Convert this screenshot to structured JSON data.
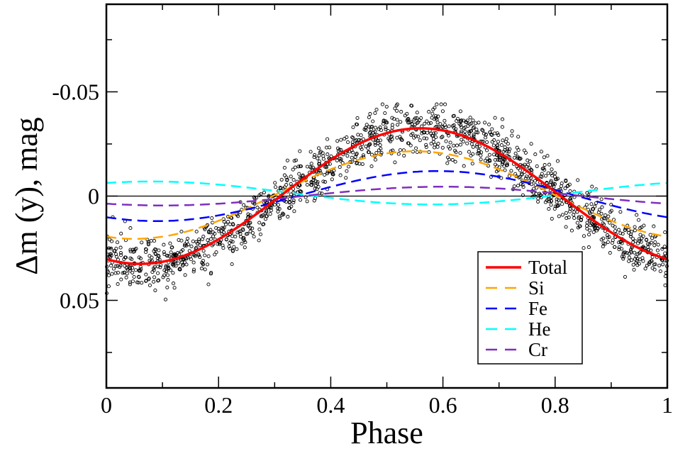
{
  "chart_data": {
    "type": "line",
    "title": "",
    "xlabel": "Phase",
    "ylabel": "Δm (y), mag",
    "xlim": [
      0,
      1
    ],
    "ylim": [
      0.092,
      -0.092
    ],
    "y_inverted": true,
    "x_ticks": [
      0,
      0.2,
      0.4,
      0.6,
      0.8,
      1
    ],
    "x_tick_labels": [
      "0",
      "0.2",
      "0.4",
      "0.6",
      "0.8",
      "1"
    ],
    "x_minor_ticks": [
      0.1,
      0.3,
      0.5,
      0.7,
      0.9
    ],
    "y_ticks": [
      -0.05,
      0,
      0.05
    ],
    "y_tick_labels": [
      "-0.05",
      "0",
      "0.05"
    ],
    "y_minor_ticks": [
      -0.075,
      -0.025,
      0.025,
      0.075
    ],
    "zero_line": true,
    "grid": false,
    "legend_position": "bottom-right",
    "series": [
      {
        "name": "Total",
        "color": "#ff0000",
        "style": "solid",
        "model": "offset + amplitude*cos(2*pi*(phase - phase_max))",
        "offset": 0.0,
        "amplitude": -0.0325,
        "phase_max": 0.56,
        "x": [
          0,
          0.1,
          0.2,
          0.3,
          0.4,
          0.5,
          0.6,
          0.7,
          0.8,
          0.9,
          1.0
        ],
        "y": [
          0.031,
          0.029,
          0.014,
          -0.003,
          -0.019,
          -0.031,
          -0.032,
          -0.022,
          -0.002,
          0.018,
          0.031
        ]
      },
      {
        "name": "Si",
        "color": "#ffa500",
        "style": "dashed",
        "offset": -0.0005,
        "amplitude": -0.021,
        "phase_max": 0.55,
        "x": [
          0,
          0.1,
          0.2,
          0.3,
          0.4,
          0.5,
          0.6,
          0.7,
          0.8,
          0.9,
          1.0
        ],
        "y": [
          0.021,
          0.018,
          0.009,
          -0.002,
          -0.013,
          -0.02,
          -0.02,
          -0.014,
          -0.002,
          0.011,
          0.021
        ]
      },
      {
        "name": "Fe",
        "color": "#0000ff",
        "style": "dashed",
        "offset": 0.0,
        "amplitude": -0.012,
        "phase_max": 0.59,
        "x": [
          0,
          0.1,
          0.2,
          0.3,
          0.4,
          0.5,
          0.6,
          0.7,
          0.8,
          0.9,
          1.0
        ],
        "y": [
          0.01,
          0.012,
          0.008,
          0.001,
          -0.006,
          -0.011,
          -0.012,
          -0.009,
          -0.002,
          0.006,
          0.01
        ]
      },
      {
        "name": "He",
        "color": "#00ffff",
        "style": "dashed",
        "offset": -0.0015,
        "amplitude": 0.0055,
        "phase_max": 0.58,
        "x": [
          0,
          0.1,
          0.2,
          0.3,
          0.4,
          0.5,
          0.6,
          0.7,
          0.8,
          0.9,
          1.0
        ],
        "y": [
          -0.005,
          -0.007,
          -0.005,
          -0.001,
          0.003,
          0.004,
          0.004,
          0.003,
          0.0,
          -0.004,
          -0.005
        ]
      },
      {
        "name": "Cr",
        "color": "#7f2fbf",
        "style": "dashed",
        "offset": 0.0,
        "amplitude": -0.0045,
        "phase_max": 0.6,
        "x": [
          0,
          0.1,
          0.2,
          0.3,
          0.4,
          0.5,
          0.6,
          0.7,
          0.8,
          0.9,
          1.0
        ],
        "y": [
          0.004,
          0.005,
          0.003,
          0.001,
          -0.002,
          -0.004,
          -0.005,
          -0.004,
          -0.001,
          0.002,
          0.004
        ]
      }
    ],
    "scatter": {
      "name": "observations",
      "marker": "open-circle",
      "color": "#000000",
      "count_approx": 1500,
      "follows": "Total",
      "scatter_sigma": 0.006,
      "y_range": [
        -0.044,
        0.066
      ]
    }
  }
}
